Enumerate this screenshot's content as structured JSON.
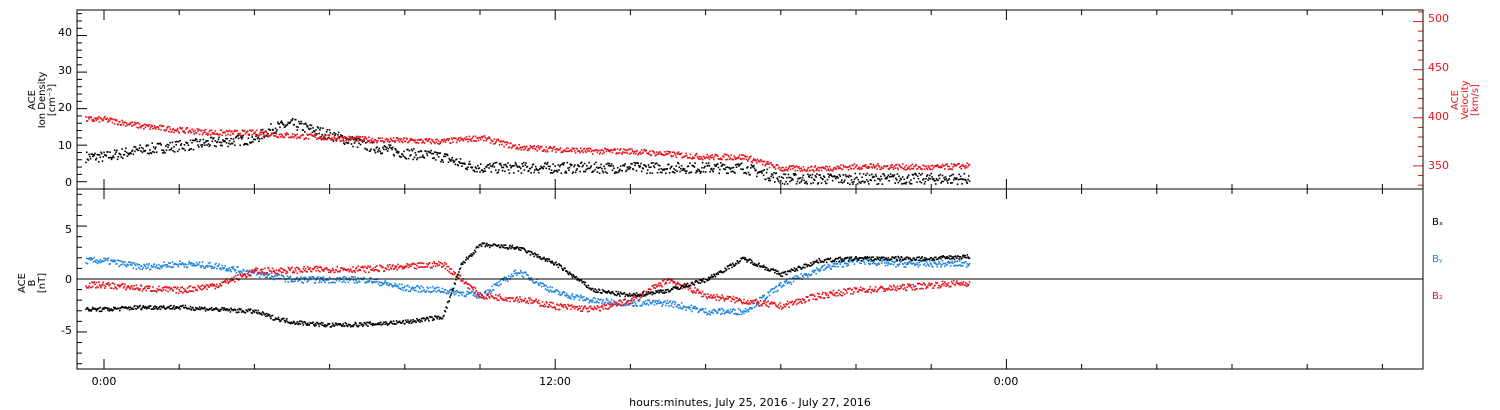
{
  "colors": {
    "black": "#000000",
    "red": "#e8121b",
    "blue": "#1e84e0"
  },
  "chart_data": [
    {
      "type": "scatter",
      "panel": "top",
      "ylabel_left": [
        "ACE",
        "Ion Density",
        "[cm⁻³]"
      ],
      "ylabel_right": [
        "ACE",
        "Velocity",
        "[km/s]"
      ],
      "ylim_left": [
        -2,
        47
      ],
      "ylim_right": [
        326,
        512
      ],
      "yticks_left": [
        "0",
        "10",
        "20",
        "30",
        "40"
      ],
      "yticks_right": [
        "350",
        "400",
        "450",
        "500"
      ],
      "series": [
        {
          "axis": "left",
          "color": "#000000",
          "points": [
            [
              0,
              7
            ],
            [
              1,
              9
            ],
            [
              2,
              10
            ],
            [
              3,
              11
            ],
            [
              4,
              12
            ],
            [
              4.5,
              15
            ],
            [
              5,
              16
            ],
            [
              6,
              13
            ],
            [
              7,
              10
            ],
            [
              8,
              8
            ],
            [
              9,
              7
            ],
            [
              9.5,
              5
            ],
            [
              10,
              4
            ],
            [
              11,
              4
            ],
            [
              12,
              4
            ],
            [
              13,
              4
            ],
            [
              14,
              4
            ],
            [
              15,
              4
            ],
            [
              16,
              4
            ],
            [
              17,
              4
            ],
            [
              18,
              1
            ],
            [
              19,
              1
            ],
            [
              20,
              1
            ],
            [
              21,
              1
            ],
            [
              22,
              1
            ],
            [
              23,
              1
            ]
          ]
        },
        {
          "axis": "right",
          "color": "#e8121b",
          "points": [
            [
              0,
              399
            ],
            [
              1,
              392
            ],
            [
              2,
              388
            ],
            [
              3,
              385
            ],
            [
              4,
              385
            ],
            [
              5,
              382
            ],
            [
              6,
              380
            ],
            [
              7,
              378
            ],
            [
              8,
              377
            ],
            [
              9,
              376
            ],
            [
              10,
              380
            ],
            [
              11,
              370
            ],
            [
              12,
              368
            ],
            [
              13,
              366
            ],
            [
              14,
              366
            ],
            [
              15,
              363
            ],
            [
              16,
              360
            ],
            [
              17,
              360
            ],
            [
              18,
              348
            ],
            [
              19,
              348
            ],
            [
              20,
              350
            ],
            [
              21,
              350
            ],
            [
              22,
              349
            ],
            [
              23,
              351
            ]
          ]
        }
      ]
    },
    {
      "type": "scatter",
      "panel": "bottom",
      "ylabel_left": [
        "ACE",
        "B",
        "[nT]"
      ],
      "ylim": [
        -8.5,
        8.5
      ],
      "yticks": [
        "-5",
        "0",
        "5"
      ],
      "legend": [
        "Bₓ",
        "Bᵧ",
        "B₂"
      ],
      "series": [
        {
          "name": "Bₓ",
          "color": "#000000",
          "points": [
            [
              0,
              -2.8
            ],
            [
              1,
              -2.6
            ],
            [
              2,
              -2.6
            ],
            [
              3,
              -2.8
            ],
            [
              4,
              -3
            ],
            [
              4.5,
              -3.6
            ],
            [
              5,
              -4
            ],
            [
              6,
              -4.3
            ],
            [
              7,
              -4.2
            ],
            [
              8,
              -4
            ],
            [
              9,
              -3.5
            ],
            [
              9.5,
              1.5
            ],
            [
              10,
              3.3
            ],
            [
              11,
              3
            ],
            [
              12,
              1.5
            ],
            [
              13,
              -1
            ],
            [
              14,
              -1.5
            ],
            [
              15,
              -1
            ],
            [
              16,
              0
            ],
            [
              17,
              2
            ],
            [
              18,
              0.5
            ],
            [
              19,
              1.8
            ],
            [
              20,
              2
            ],
            [
              21,
              2
            ],
            [
              22,
              2
            ],
            [
              23,
              2.2
            ]
          ]
        },
        {
          "name": "Bᵧ",
          "color": "#1e84e0",
          "points": [
            [
              0,
              1.8
            ],
            [
              1,
              1.2
            ],
            [
              2,
              1.5
            ],
            [
              3,
              1.3
            ],
            [
              4,
              0.6
            ],
            [
              5,
              0
            ],
            [
              6,
              0
            ],
            [
              7,
              0
            ],
            [
              8,
              -0.8
            ],
            [
              9,
              -1
            ],
            [
              10,
              -1.5
            ],
            [
              11,
              0.8
            ],
            [
              12,
              -1.2
            ],
            [
              13,
              -2
            ],
            [
              14,
              -2.2
            ],
            [
              15,
              -2.2
            ],
            [
              16,
              -3
            ],
            [
              17,
              -3
            ],
            [
              18,
              -0.5
            ],
            [
              19,
              1
            ],
            [
              20,
              1.8
            ],
            [
              21,
              1.5
            ],
            [
              22,
              1.5
            ],
            [
              23,
              1.5
            ]
          ]
        },
        {
          "name": "B₂",
          "color": "#e8121b",
          "points": [
            [
              0,
              -0.5
            ],
            [
              1,
              -0.8
            ],
            [
              2,
              -1
            ],
            [
              3,
              -0.5
            ],
            [
              4,
              0.8
            ],
            [
              5,
              0.9
            ],
            [
              6,
              1
            ],
            [
              7,
              1
            ],
            [
              8,
              1.2
            ],
            [
              9,
              1.5
            ],
            [
              9.5,
              0
            ],
            [
              10,
              -1.5
            ],
            [
              11,
              -1.8
            ],
            [
              12,
              -2.5
            ],
            [
              13,
              -2.8
            ],
            [
              14,
              -2
            ],
            [
              15,
              0
            ],
            [
              16,
              -1.5
            ],
            [
              17,
              -2
            ],
            [
              18,
              -2.5
            ],
            [
              19,
              -1.5
            ],
            [
              20,
              -1
            ],
            [
              21,
              -0.8
            ],
            [
              22,
              -0.5
            ],
            [
              23,
              -0.3
            ]
          ]
        }
      ]
    }
  ],
  "xaxis": {
    "tick_labels": [
      "0:00",
      "12:00",
      "0:00"
    ],
    "xlabel": "hours:minutes, July 25, 2016 - July 27, 2016"
  }
}
